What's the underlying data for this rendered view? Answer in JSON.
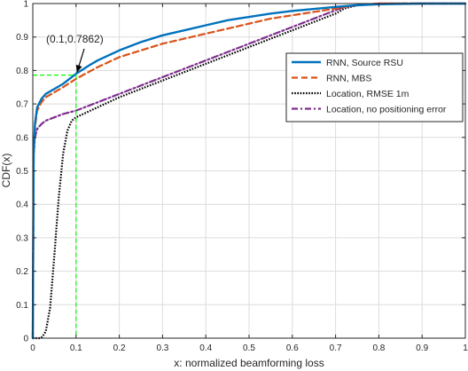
{
  "chart_data": {
    "type": "line",
    "title": "",
    "xlabel": "x: normalized beamforming loss",
    "ylabel": "CDF(x)",
    "xlim": [
      0,
      1
    ],
    "ylim": [
      0,
      1
    ],
    "xticks": [
      0,
      0.1,
      0.2,
      0.3,
      0.4,
      0.5,
      0.6,
      0.7,
      0.8,
      0.9,
      1
    ],
    "xtick_labels": [
      "0",
      "0.1",
      "0.2",
      "0.3",
      "0.4",
      "0.5",
      "0.6",
      "0.7",
      "0.8",
      "0.9",
      "1"
    ],
    "yticks": [
      0,
      0.1,
      0.2,
      0.3,
      0.4,
      0.5,
      0.6,
      0.7,
      0.8,
      0.9,
      1
    ],
    "ytick_labels": [
      "0",
      "0.1",
      "0.2",
      "0.3",
      "0.4",
      "0.5",
      "0.6",
      "0.7",
      "0.8",
      "0.9",
      "1"
    ],
    "grid": true,
    "legend_position": "right",
    "series": [
      {
        "name": "RNN, Source RSU",
        "color": "#0072BD",
        "style": "solid",
        "x": [
          0,
          0.002,
          0.005,
          0.01,
          0.02,
          0.03,
          0.05,
          0.07,
          0.1,
          0.13,
          0.15,
          0.2,
          0.25,
          0.3,
          0.35,
          0.4,
          0.45,
          0.5,
          0.55,
          0.6,
          0.65,
          0.7,
          0.75,
          0.8,
          0.9,
          1
        ],
        "y": [
          0,
          0.55,
          0.64,
          0.69,
          0.715,
          0.73,
          0.745,
          0.76,
          0.79,
          0.815,
          0.83,
          0.86,
          0.885,
          0.905,
          0.92,
          0.935,
          0.95,
          0.96,
          0.97,
          0.978,
          0.984,
          0.99,
          0.995,
          0.998,
          1.0,
          1.0
        ]
      },
      {
        "name": "RNN, MBS",
        "color": "#D95319",
        "style": "dashed",
        "x": [
          0,
          0.002,
          0.005,
          0.01,
          0.02,
          0.03,
          0.05,
          0.07,
          0.1,
          0.15,
          0.2,
          0.25,
          0.3,
          0.35,
          0.4,
          0.45,
          0.5,
          0.55,
          0.6,
          0.65,
          0.7,
          0.75,
          0.8,
          0.9,
          1
        ],
        "y": [
          0,
          0.54,
          0.63,
          0.68,
          0.705,
          0.72,
          0.735,
          0.75,
          0.775,
          0.81,
          0.84,
          0.86,
          0.88,
          0.895,
          0.91,
          0.925,
          0.94,
          0.955,
          0.965,
          0.975,
          0.985,
          0.995,
          1.0,
          1.0,
          1.0
        ]
      },
      {
        "name": "Location, RMSE 1m",
        "color": "#000000",
        "style": "dotted",
        "x": [
          0,
          0.018,
          0.022,
          0.03,
          0.04,
          0.05,
          0.06,
          0.07,
          0.08,
          0.09,
          0.1,
          0.15,
          0.2,
          0.3,
          0.4,
          0.5,
          0.6,
          0.7,
          0.72,
          0.75,
          0.8,
          0.9,
          1
        ],
        "y": [
          0,
          0.0,
          0.004,
          0.02,
          0.09,
          0.25,
          0.42,
          0.55,
          0.62,
          0.65,
          0.66,
          0.69,
          0.72,
          0.77,
          0.82,
          0.87,
          0.92,
          0.97,
          0.985,
          0.995,
          1.0,
          1.0,
          1.0
        ]
      },
      {
        "name": "Location, no positioning error",
        "color": "#7E2F8E",
        "style": "dashdot",
        "x": [
          0,
          0.002,
          0.005,
          0.01,
          0.02,
          0.03,
          0.05,
          0.07,
          0.1,
          0.15,
          0.2,
          0.3,
          0.4,
          0.5,
          0.6,
          0.7,
          0.72,
          0.75,
          0.8,
          0.9,
          1
        ],
        "y": [
          0,
          0.55,
          0.6,
          0.625,
          0.64,
          0.65,
          0.66,
          0.67,
          0.68,
          0.705,
          0.73,
          0.78,
          0.83,
          0.88,
          0.93,
          0.98,
          0.99,
          0.995,
          1.0,
          1.0,
          1.0
        ]
      }
    ],
    "annotation": {
      "text": "(0.1,0.7862)",
      "point_x": 0.1,
      "point_y": 0.7862,
      "guide_color": "#00FF00"
    }
  }
}
